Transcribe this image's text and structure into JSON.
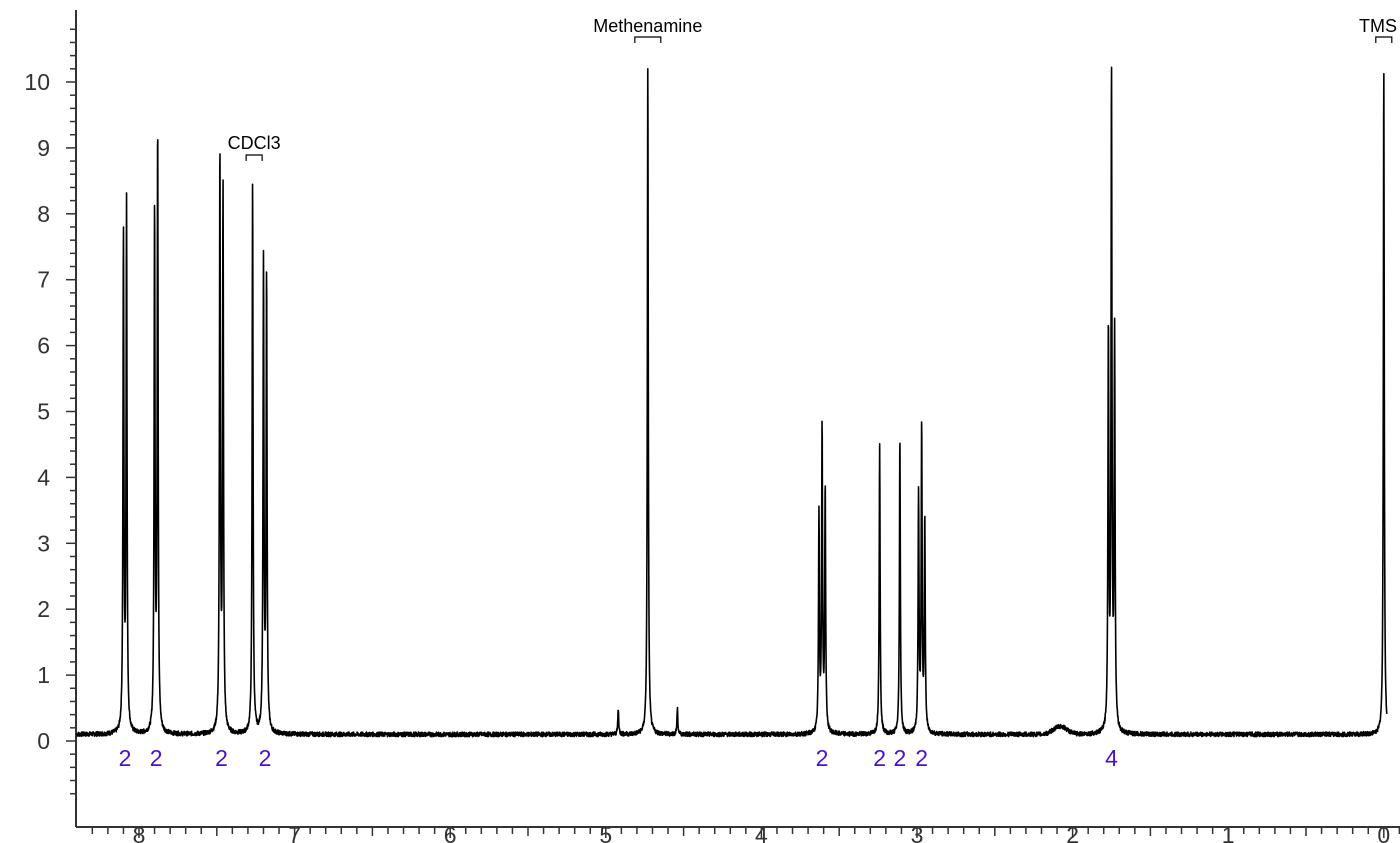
{
  "chart_data": {
    "type": "line",
    "title": "",
    "xlabel": "",
    "ylabel": "",
    "xlim": [
      8.4,
      0
    ],
    "ylim": [
      -0.9,
      10.9
    ],
    "x_reversed": true,
    "x_ticks": [
      "8",
      "7",
      "6",
      "5",
      "4",
      "3",
      "2",
      "1",
      "0"
    ],
    "y_ticks": [
      "0",
      "1",
      "2",
      "3",
      "4",
      "5",
      "6",
      "7",
      "8",
      "9",
      "10"
    ],
    "baseline": 0.1,
    "colors": {
      "spectrum": "#000000",
      "integral": "#4b0fd0",
      "axis": "#333333"
    },
    "series": [
      {
        "peaks": [
          {
            "x": 8.1,
            "y": 7.6
          },
          {
            "x": 8.08,
            "y": 8.1
          },
          {
            "x": 7.9,
            "y": 8.0
          },
          {
            "x": 7.88,
            "y": 9.2
          },
          {
            "x": 7.48,
            "y": 8.9
          },
          {
            "x": 7.46,
            "y": 8.3
          },
          {
            "x": 7.27,
            "y": 8.5
          },
          {
            "x": 7.2,
            "y": 7.2
          },
          {
            "x": 7.18,
            "y": 7.0
          },
          {
            "x": 4.92,
            "y": 0.48
          },
          {
            "x": 4.73,
            "y": 10.25
          },
          {
            "x": 4.54,
            "y": 0.48
          },
          {
            "x": 3.63,
            "y": 3.4
          },
          {
            "x": 3.61,
            "y": 4.7
          },
          {
            "x": 3.59,
            "y": 3.8
          },
          {
            "x": 3.24,
            "y": 4.5
          },
          {
            "x": 3.11,
            "y": 4.6
          },
          {
            "x": 2.99,
            "y": 3.7
          },
          {
            "x": 2.97,
            "y": 4.7
          },
          {
            "x": 2.95,
            "y": 3.3
          },
          {
            "x": 1.77,
            "y": 6.2
          },
          {
            "x": 1.75,
            "y": 10.0
          },
          {
            "x": 1.73,
            "y": 6.1
          },
          {
            "x": 0.0,
            "y": 10.25
          }
        ]
      }
    ],
    "annotations": [
      {
        "label": "CDCl3",
        "x": 7.26
      },
      {
        "label": "Methenamine",
        "x": 4.73
      },
      {
        "label": "TMS",
        "x": 0.0
      }
    ],
    "integrals": [
      {
        "x": 8.09,
        "label": "2"
      },
      {
        "x": 7.89,
        "label": "2"
      },
      {
        "x": 7.47,
        "label": "2"
      },
      {
        "x": 7.19,
        "label": "2"
      },
      {
        "x": 3.61,
        "label": "2"
      },
      {
        "x": 3.24,
        "label": "2"
      },
      {
        "x": 3.11,
        "label": "2"
      },
      {
        "x": 2.97,
        "label": "2"
      },
      {
        "x": 1.75,
        "label": "4"
      }
    ]
  }
}
